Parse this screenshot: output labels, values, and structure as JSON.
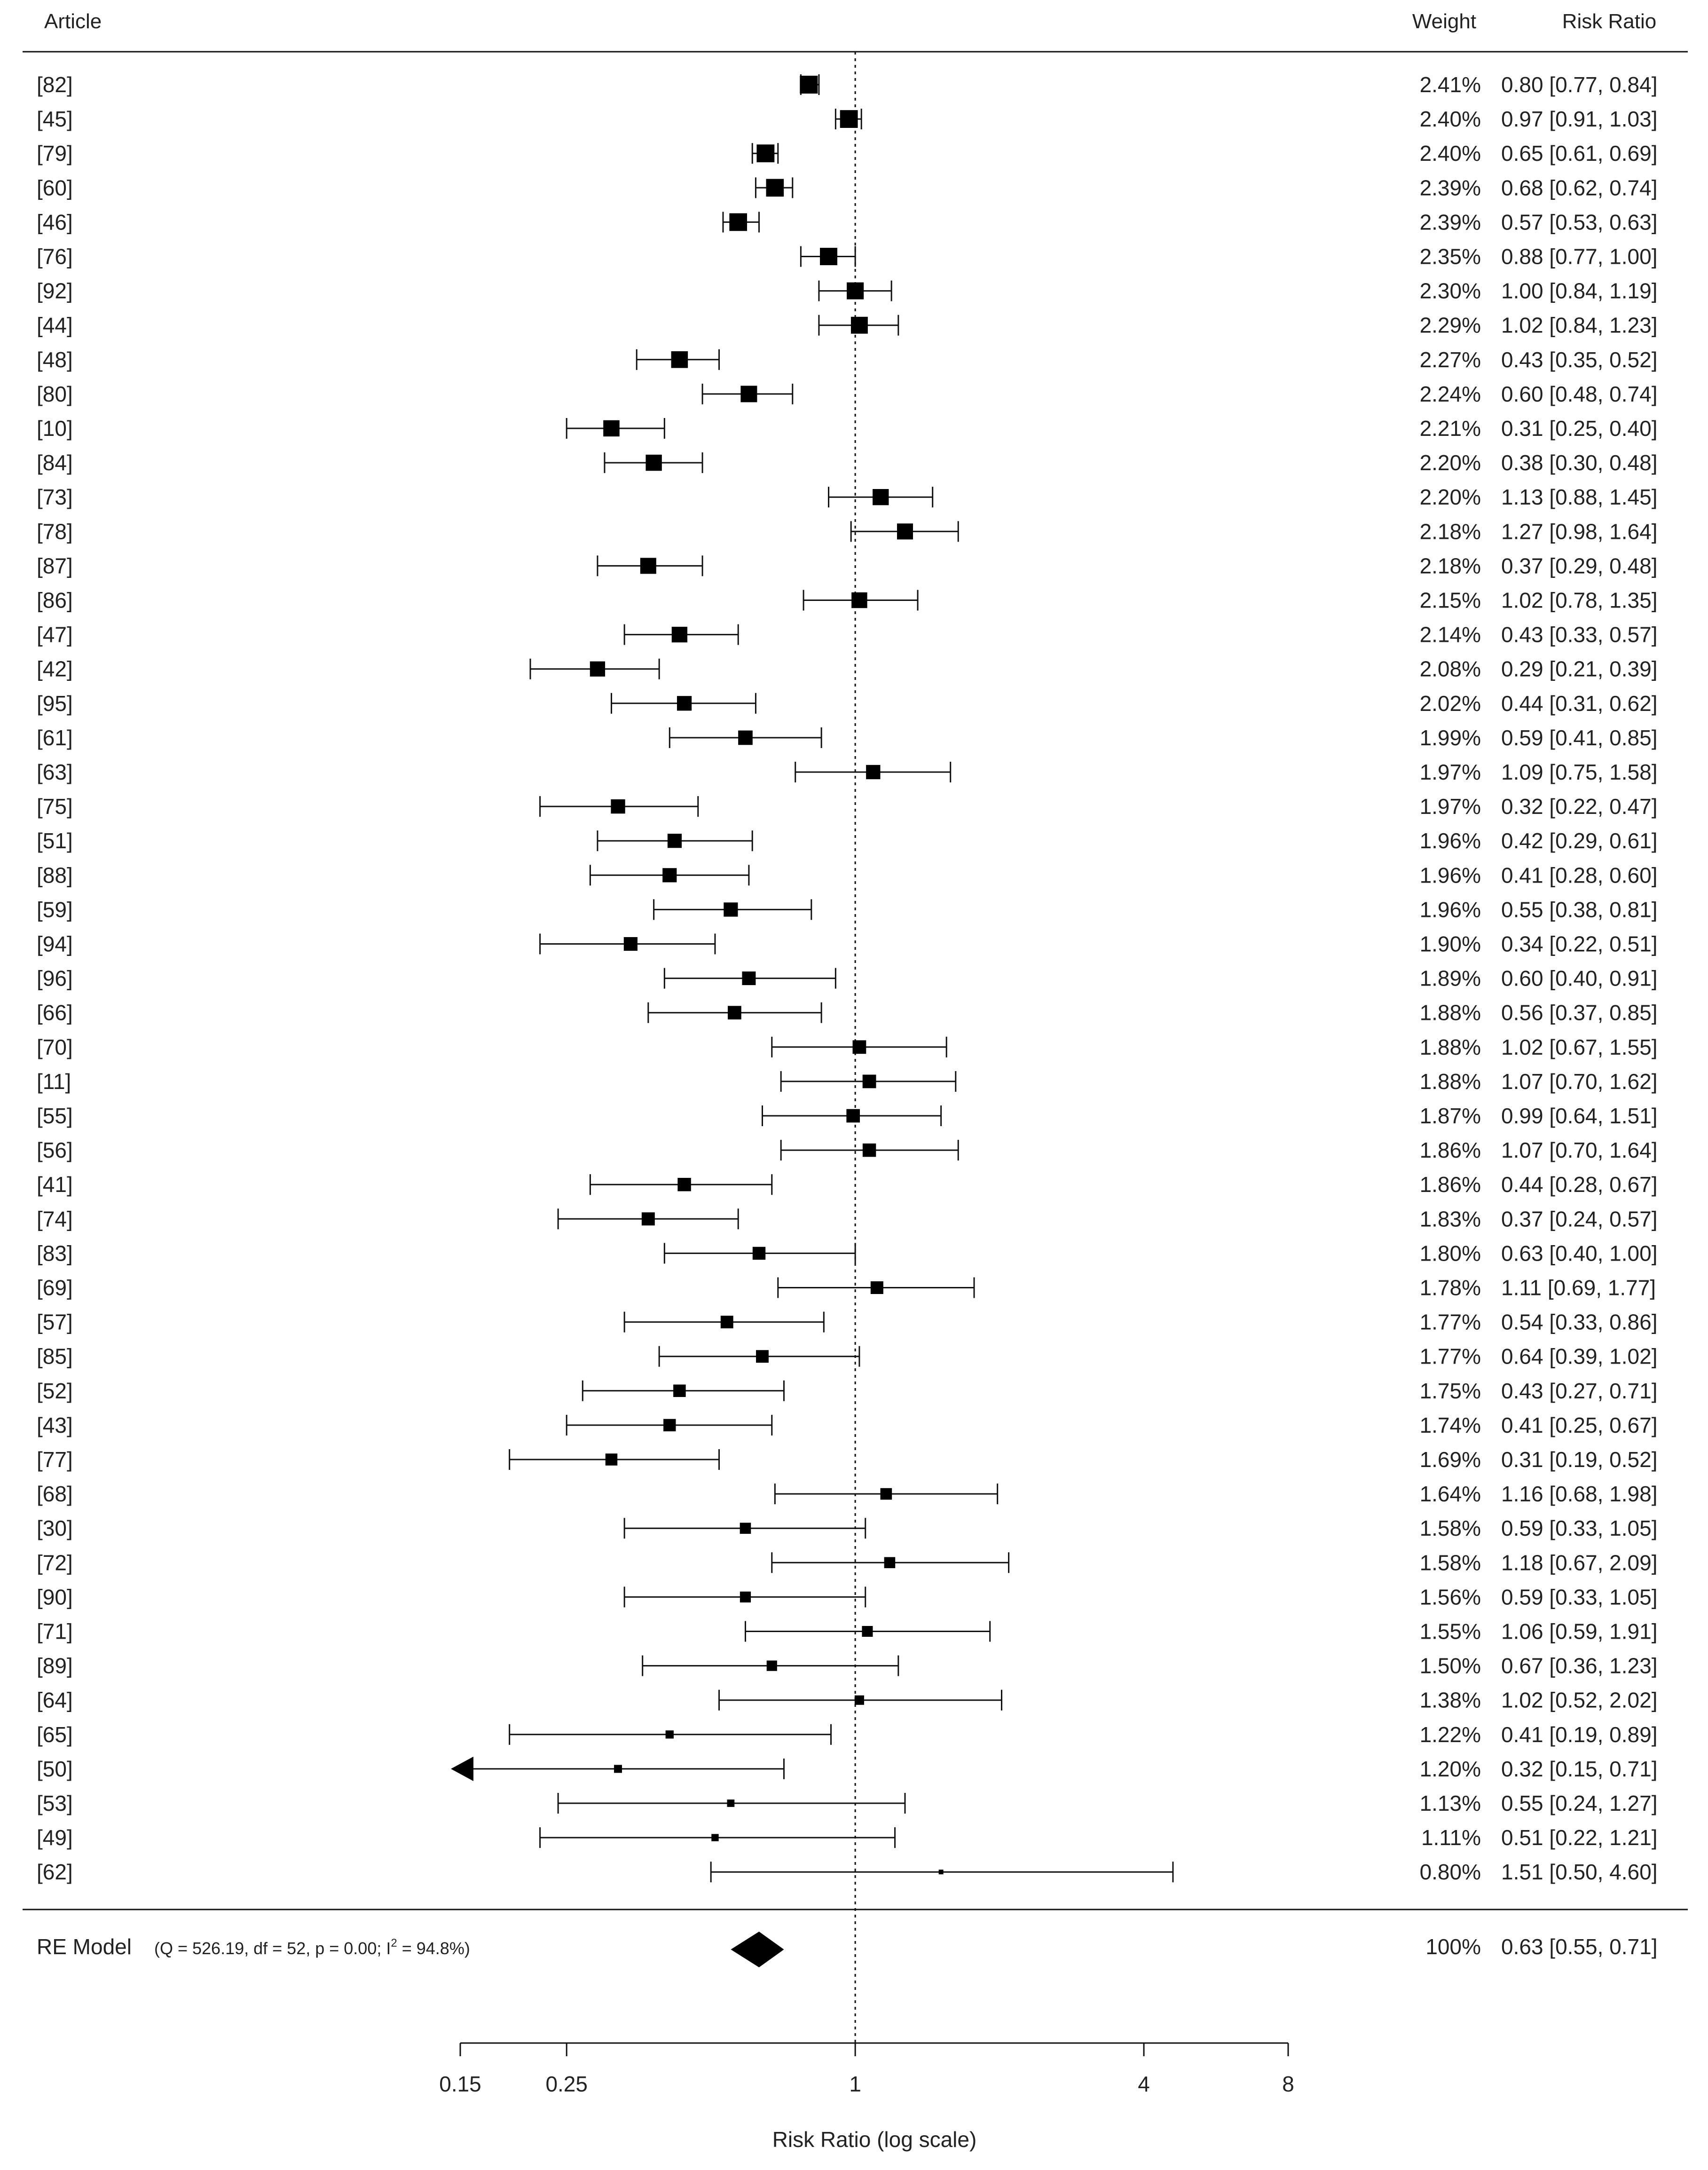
{
  "chart_data": {
    "type": "forest",
    "x_scale": "log",
    "xlabel": "Risk Ratio (log scale)",
    "xlim": [
      0.15,
      8
    ],
    "x_ticks": [
      0.15,
      0.25,
      1,
      4,
      8
    ],
    "x_tick_labels": [
      "0.15",
      "0.25",
      "1",
      "4",
      "8"
    ],
    "reference_line": 1,
    "headers": {
      "article": "Article",
      "weight": "Weight",
      "risk_ratio": "Risk Ratio"
    },
    "studies": [
      {
        "label": "[82]",
        "weight": "2.41%",
        "rr_text": "0.80 [0.77, 0.84]",
        "rr": 0.8,
        "lo": 0.77,
        "hi": 0.84,
        "w": 2.41
      },
      {
        "label": "[45]",
        "weight": "2.40%",
        "rr_text": "0.97 [0.91, 1.03]",
        "rr": 0.97,
        "lo": 0.91,
        "hi": 1.03,
        "w": 2.4
      },
      {
        "label": "[79]",
        "weight": "2.40%",
        "rr_text": "0.65 [0.61, 0.69]",
        "rr": 0.65,
        "lo": 0.61,
        "hi": 0.69,
        "w": 2.4
      },
      {
        "label": "[60]",
        "weight": "2.39%",
        "rr_text": "0.68 [0.62, 0.74]",
        "rr": 0.68,
        "lo": 0.62,
        "hi": 0.74,
        "w": 2.39
      },
      {
        "label": "[46]",
        "weight": "2.39%",
        "rr_text": "0.57 [0.53, 0.63]",
        "rr": 0.57,
        "lo": 0.53,
        "hi": 0.63,
        "w": 2.39
      },
      {
        "label": "[76]",
        "weight": "2.35%",
        "rr_text": "0.88 [0.77, 1.00]",
        "rr": 0.88,
        "lo": 0.77,
        "hi": 1.0,
        "w": 2.35
      },
      {
        "label": "[92]",
        "weight": "2.30%",
        "rr_text": "1.00 [0.84, 1.19]",
        "rr": 1.0,
        "lo": 0.84,
        "hi": 1.19,
        "w": 2.3
      },
      {
        "label": "[44]",
        "weight": "2.29%",
        "rr_text": "1.02 [0.84, 1.23]",
        "rr": 1.02,
        "lo": 0.84,
        "hi": 1.23,
        "w": 2.29
      },
      {
        "label": "[48]",
        "weight": "2.27%",
        "rr_text": "0.43 [0.35, 0.52]",
        "rr": 0.43,
        "lo": 0.35,
        "hi": 0.52,
        "w": 2.27
      },
      {
        "label": "[80]",
        "weight": "2.24%",
        "rr_text": "0.60 [0.48, 0.74]",
        "rr": 0.6,
        "lo": 0.48,
        "hi": 0.74,
        "w": 2.24
      },
      {
        "label": "[10]",
        "weight": "2.21%",
        "rr_text": "0.31 [0.25, 0.40]",
        "rr": 0.31,
        "lo": 0.25,
        "hi": 0.4,
        "w": 2.21
      },
      {
        "label": "[84]",
        "weight": "2.20%",
        "rr_text": "0.38 [0.30, 0.48]",
        "rr": 0.38,
        "lo": 0.3,
        "hi": 0.48,
        "w": 2.2
      },
      {
        "label": "[73]",
        "weight": "2.20%",
        "rr_text": "1.13 [0.88, 1.45]",
        "rr": 1.13,
        "lo": 0.88,
        "hi": 1.45,
        "w": 2.2
      },
      {
        "label": "[78]",
        "weight": "2.18%",
        "rr_text": "1.27 [0.98, 1.64]",
        "rr": 1.27,
        "lo": 0.98,
        "hi": 1.64,
        "w": 2.18
      },
      {
        "label": "[87]",
        "weight": "2.18%",
        "rr_text": "0.37 [0.29, 0.48]",
        "rr": 0.37,
        "lo": 0.29,
        "hi": 0.48,
        "w": 2.18
      },
      {
        "label": "[86]",
        "weight": "2.15%",
        "rr_text": "1.02 [0.78, 1.35]",
        "rr": 1.02,
        "lo": 0.78,
        "hi": 1.35,
        "w": 2.15
      },
      {
        "label": "[47]",
        "weight": "2.14%",
        "rr_text": "0.43 [0.33, 0.57]",
        "rr": 0.43,
        "lo": 0.33,
        "hi": 0.57,
        "w": 2.14
      },
      {
        "label": "[42]",
        "weight": "2.08%",
        "rr_text": "0.29 [0.21, 0.39]",
        "rr": 0.29,
        "lo": 0.21,
        "hi": 0.39,
        "w": 2.08
      },
      {
        "label": "[95]",
        "weight": "2.02%",
        "rr_text": "0.44 [0.31, 0.62]",
        "rr": 0.44,
        "lo": 0.31,
        "hi": 0.62,
        "w": 2.02
      },
      {
        "label": "[61]",
        "weight": "1.99%",
        "rr_text": "0.59 [0.41, 0.85]",
        "rr": 0.59,
        "lo": 0.41,
        "hi": 0.85,
        "w": 1.99
      },
      {
        "label": "[63]",
        "weight": "1.97%",
        "rr_text": "1.09 [0.75, 1.58]",
        "rr": 1.09,
        "lo": 0.75,
        "hi": 1.58,
        "w": 1.97
      },
      {
        "label": "[75]",
        "weight": "1.97%",
        "rr_text": "0.32 [0.22, 0.47]",
        "rr": 0.32,
        "lo": 0.22,
        "hi": 0.47,
        "w": 1.97
      },
      {
        "label": "[51]",
        "weight": "1.96%",
        "rr_text": "0.42 [0.29, 0.61]",
        "rr": 0.42,
        "lo": 0.29,
        "hi": 0.61,
        "w": 1.96
      },
      {
        "label": "[88]",
        "weight": "1.96%",
        "rr_text": "0.41 [0.28, 0.60]",
        "rr": 0.41,
        "lo": 0.28,
        "hi": 0.6,
        "w": 1.96
      },
      {
        "label": "[59]",
        "weight": "1.96%",
        "rr_text": "0.55 [0.38, 0.81]",
        "rr": 0.55,
        "lo": 0.38,
        "hi": 0.81,
        "w": 1.96
      },
      {
        "label": "[94]",
        "weight": "1.90%",
        "rr_text": "0.34 [0.22, 0.51]",
        "rr": 0.34,
        "lo": 0.22,
        "hi": 0.51,
        "w": 1.9
      },
      {
        "label": "[96]",
        "weight": "1.89%",
        "rr_text": "0.60 [0.40, 0.91]",
        "rr": 0.6,
        "lo": 0.4,
        "hi": 0.91,
        "w": 1.89
      },
      {
        "label": "[66]",
        "weight": "1.88%",
        "rr_text": "0.56 [0.37, 0.85]",
        "rr": 0.56,
        "lo": 0.37,
        "hi": 0.85,
        "w": 1.88
      },
      {
        "label": "[70]",
        "weight": "1.88%",
        "rr_text": "1.02 [0.67, 1.55]",
        "rr": 1.02,
        "lo": 0.67,
        "hi": 1.55,
        "w": 1.88
      },
      {
        "label": "[11]",
        "weight": "1.88%",
        "rr_text": "1.07 [0.70, 1.62]",
        "rr": 1.07,
        "lo": 0.7,
        "hi": 1.62,
        "w": 1.88
      },
      {
        "label": "[55]",
        "weight": "1.87%",
        "rr_text": "0.99 [0.64, 1.51]",
        "rr": 0.99,
        "lo": 0.64,
        "hi": 1.51,
        "w": 1.87
      },
      {
        "label": "[56]",
        "weight": "1.86%",
        "rr_text": "1.07 [0.70, 1.64]",
        "rr": 1.07,
        "lo": 0.7,
        "hi": 1.64,
        "w": 1.86
      },
      {
        "label": "[41]",
        "weight": "1.86%",
        "rr_text": "0.44 [0.28, 0.67]",
        "rr": 0.44,
        "lo": 0.28,
        "hi": 0.67,
        "w": 1.86
      },
      {
        "label": "[74]",
        "weight": "1.83%",
        "rr_text": "0.37 [0.24, 0.57]",
        "rr": 0.37,
        "lo": 0.24,
        "hi": 0.57,
        "w": 1.83
      },
      {
        "label": "[83]",
        "weight": "1.80%",
        "rr_text": "0.63 [0.40, 1.00]",
        "rr": 0.63,
        "lo": 0.4,
        "hi": 1.0,
        "w": 1.8
      },
      {
        "label": "[69]",
        "weight": "1.78%",
        "rr_text": "1.11 [0.69, 1.77]",
        "rr": 1.11,
        "lo": 0.69,
        "hi": 1.77,
        "w": 1.78
      },
      {
        "label": "[57]",
        "weight": "1.77%",
        "rr_text": "0.54 [0.33, 0.86]",
        "rr": 0.54,
        "lo": 0.33,
        "hi": 0.86,
        "w": 1.77
      },
      {
        "label": "[85]",
        "weight": "1.77%",
        "rr_text": "0.64 [0.39, 1.02]",
        "rr": 0.64,
        "lo": 0.39,
        "hi": 1.02,
        "w": 1.77
      },
      {
        "label": "[52]",
        "weight": "1.75%",
        "rr_text": "0.43 [0.27, 0.71]",
        "rr": 0.43,
        "lo": 0.27,
        "hi": 0.71,
        "w": 1.75
      },
      {
        "label": "[43]",
        "weight": "1.74%",
        "rr_text": "0.41 [0.25, 0.67]",
        "rr": 0.41,
        "lo": 0.25,
        "hi": 0.67,
        "w": 1.74
      },
      {
        "label": "[77]",
        "weight": "1.69%",
        "rr_text": "0.31 [0.19, 0.52]",
        "rr": 0.31,
        "lo": 0.19,
        "hi": 0.52,
        "w": 1.69
      },
      {
        "label": "[68]",
        "weight": "1.64%",
        "rr_text": "1.16 [0.68, 1.98]",
        "rr": 1.16,
        "lo": 0.68,
        "hi": 1.98,
        "w": 1.64
      },
      {
        "label": "[30]",
        "weight": "1.58%",
        "rr_text": "0.59 [0.33, 1.05]",
        "rr": 0.59,
        "lo": 0.33,
        "hi": 1.05,
        "w": 1.58
      },
      {
        "label": "[72]",
        "weight": "1.58%",
        "rr_text": "1.18 [0.67, 2.09]",
        "rr": 1.18,
        "lo": 0.67,
        "hi": 2.09,
        "w": 1.58
      },
      {
        "label": "[90]",
        "weight": "1.56%",
        "rr_text": "0.59 [0.33, 1.05]",
        "rr": 0.59,
        "lo": 0.33,
        "hi": 1.05,
        "w": 1.56
      },
      {
        "label": "[71]",
        "weight": "1.55%",
        "rr_text": "1.06 [0.59, 1.91]",
        "rr": 1.06,
        "lo": 0.59,
        "hi": 1.91,
        "w": 1.55
      },
      {
        "label": "[89]",
        "weight": "1.50%",
        "rr_text": "0.67 [0.36, 1.23]",
        "rr": 0.67,
        "lo": 0.36,
        "hi": 1.23,
        "w": 1.5
      },
      {
        "label": "[64]",
        "weight": "1.38%",
        "rr_text": "1.02 [0.52, 2.02]",
        "rr": 1.02,
        "lo": 0.52,
        "hi": 2.02,
        "w": 1.38
      },
      {
        "label": "[65]",
        "weight": "1.22%",
        "rr_text": "0.41 [0.19, 0.89]",
        "rr": 0.41,
        "lo": 0.19,
        "hi": 0.89,
        "w": 1.22
      },
      {
        "label": "[50]",
        "weight": "1.20%",
        "rr_text": "0.32 [0.15, 0.71]",
        "rr": 0.32,
        "lo": 0.15,
        "hi": 0.71,
        "w": 1.2
      },
      {
        "label": "[53]",
        "weight": "1.13%",
        "rr_text": "0.55 [0.24, 1.27]",
        "rr": 0.55,
        "lo": 0.24,
        "hi": 1.27,
        "w": 1.13
      },
      {
        "label": "[49]",
        "weight": "1.11%",
        "rr_text": "0.51 [0.22, 1.21]",
        "rr": 0.51,
        "lo": 0.22,
        "hi": 1.21,
        "w": 1.11
      },
      {
        "label": "[62]",
        "weight": "0.80%",
        "rr_text": "1.51 [0.50, 4.60]",
        "rr": 1.51,
        "lo": 0.5,
        "hi": 4.6,
        "w": 0.8
      }
    ],
    "summary": {
      "label": "RE Model",
      "stats_pre": "(Q = 526.19, df = 52, p = 0.00; I",
      "stats_sup": "2",
      "stats_post": " = 94.8%)",
      "weight": "100%",
      "rr_text": "0.63 [0.55, 0.71]",
      "rr": 0.63,
      "lo": 0.55,
      "hi": 0.71
    }
  }
}
